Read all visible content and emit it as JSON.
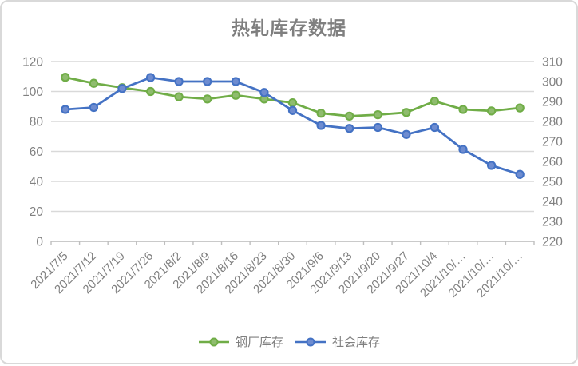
{
  "chart_data": {
    "type": "line",
    "title": "热轧库存数据",
    "categories": [
      "2021/7/5",
      "2021/7/12",
      "2021/7/19",
      "2021/7/26",
      "2021/8/2",
      "2021/8/9",
      "2021/8/16",
      "2021/8/23",
      "2021/8/30",
      "2021/9/6",
      "2021/9/13",
      "2021/9/20",
      "2021/9/27",
      "2021/10/4",
      "2021/10/…",
      "2021/10/…",
      "2021/10/…"
    ],
    "series": [
      {
        "name": "钢厂库存",
        "axis": "left",
        "color": "#70AD47",
        "marker_fill": "#8FBC6E",
        "values": [
          109.5,
          105.5,
          102.5,
          100,
          96.5,
          95,
          97.5,
          95,
          92.5,
          85.5,
          83.5,
          84.5,
          86,
          93.5,
          88,
          87,
          89
        ]
      },
      {
        "name": "社会库存",
        "axis": "right",
        "color": "#4472C4",
        "marker_fill": "#6E8CD0",
        "values": [
          286,
          287,
          296.5,
          302,
          300,
          300,
          300,
          294.5,
          285.5,
          278,
          276.5,
          277,
          273.5,
          277,
          266,
          258,
          253.5
        ]
      }
    ],
    "left_axis": {
      "min": 0,
      "max": 120,
      "ticks": [
        0,
        20,
        40,
        60,
        80,
        100,
        120
      ]
    },
    "right_axis": {
      "min": 220,
      "max": 310,
      "ticks": [
        220,
        230,
        240,
        250,
        260,
        270,
        280,
        290,
        300,
        310
      ]
    },
    "grid": true,
    "legend_position": "bottom",
    "x_labels_rotation_deg": -45,
    "colors": {
      "grid": "#d9d9d9",
      "axis": "#bfbfbf",
      "text": "#808080",
      "title": "#7f7f7f",
      "background": "#ffffff",
      "border": "#d9d9d9"
    }
  }
}
